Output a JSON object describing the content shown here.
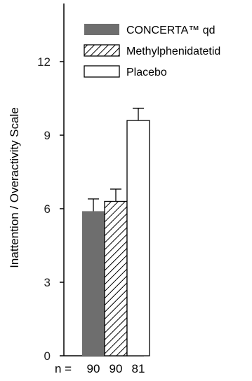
{
  "chart_data": {
    "type": "bar",
    "title": "",
    "xlabel": "",
    "ylabel": "Inattention / Overactivity Scale",
    "ylim": [
      0,
      15
    ],
    "yticks": [
      0,
      3,
      6,
      9,
      12
    ],
    "grid": false,
    "legend_position": "top-right",
    "series": [
      {
        "name": "CONCERTA™ qd",
        "value": 5.9,
        "error": 0.5,
        "fill": "solid",
        "color": "#6e6e6e"
      },
      {
        "name": "Methylphenidatetid",
        "value": 6.3,
        "error": 0.5,
        "fill": "hatch",
        "color": "#000000"
      },
      {
        "name": "Placebo",
        "value": 9.6,
        "error": 0.5,
        "fill": "open",
        "color": "#ffffff"
      }
    ],
    "sample_sizes": {
      "label": "n =",
      "values": [
        "90",
        "90",
        "81"
      ]
    }
  }
}
